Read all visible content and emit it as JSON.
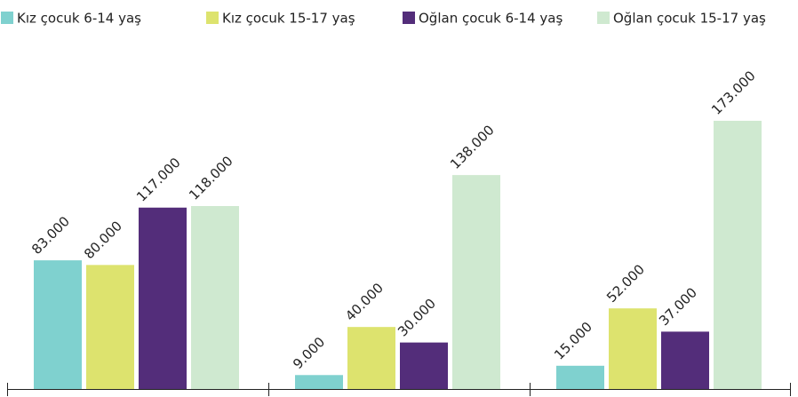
{
  "chart_data": {
    "type": "bar",
    "categories": [
      null,
      null,
      null
    ],
    "series": [
      {
        "name": "Kız çocuk 6-14 yaş",
        "color": "#7fd1cf",
        "values": [
          83000,
          9000,
          15000
        ],
        "value_labels": [
          "83.000",
          "9.000",
          "15.000"
        ]
      },
      {
        "name": "Kız çocuk 15-17 yaş",
        "color": "#dde36e",
        "values": [
          80000,
          40000,
          52000
        ],
        "value_labels": [
          "80.000",
          "40.000",
          "52.000"
        ]
      },
      {
        "name": "Oğlan çocuk 6-14 yaş",
        "color": "#532d7a",
        "values": [
          117000,
          30000,
          37000
        ],
        "value_labels": [
          "117.000",
          "30.000",
          "37.000"
        ]
      },
      {
        "name": "Oğlan çocuk 15-17 yaş",
        "color": "#cfe9d0",
        "values": [
          118000,
          138000,
          173000
        ],
        "value_labels": [
          "118.000",
          "138.000",
          "173.000"
        ]
      }
    ],
    "legend": "top"
  }
}
